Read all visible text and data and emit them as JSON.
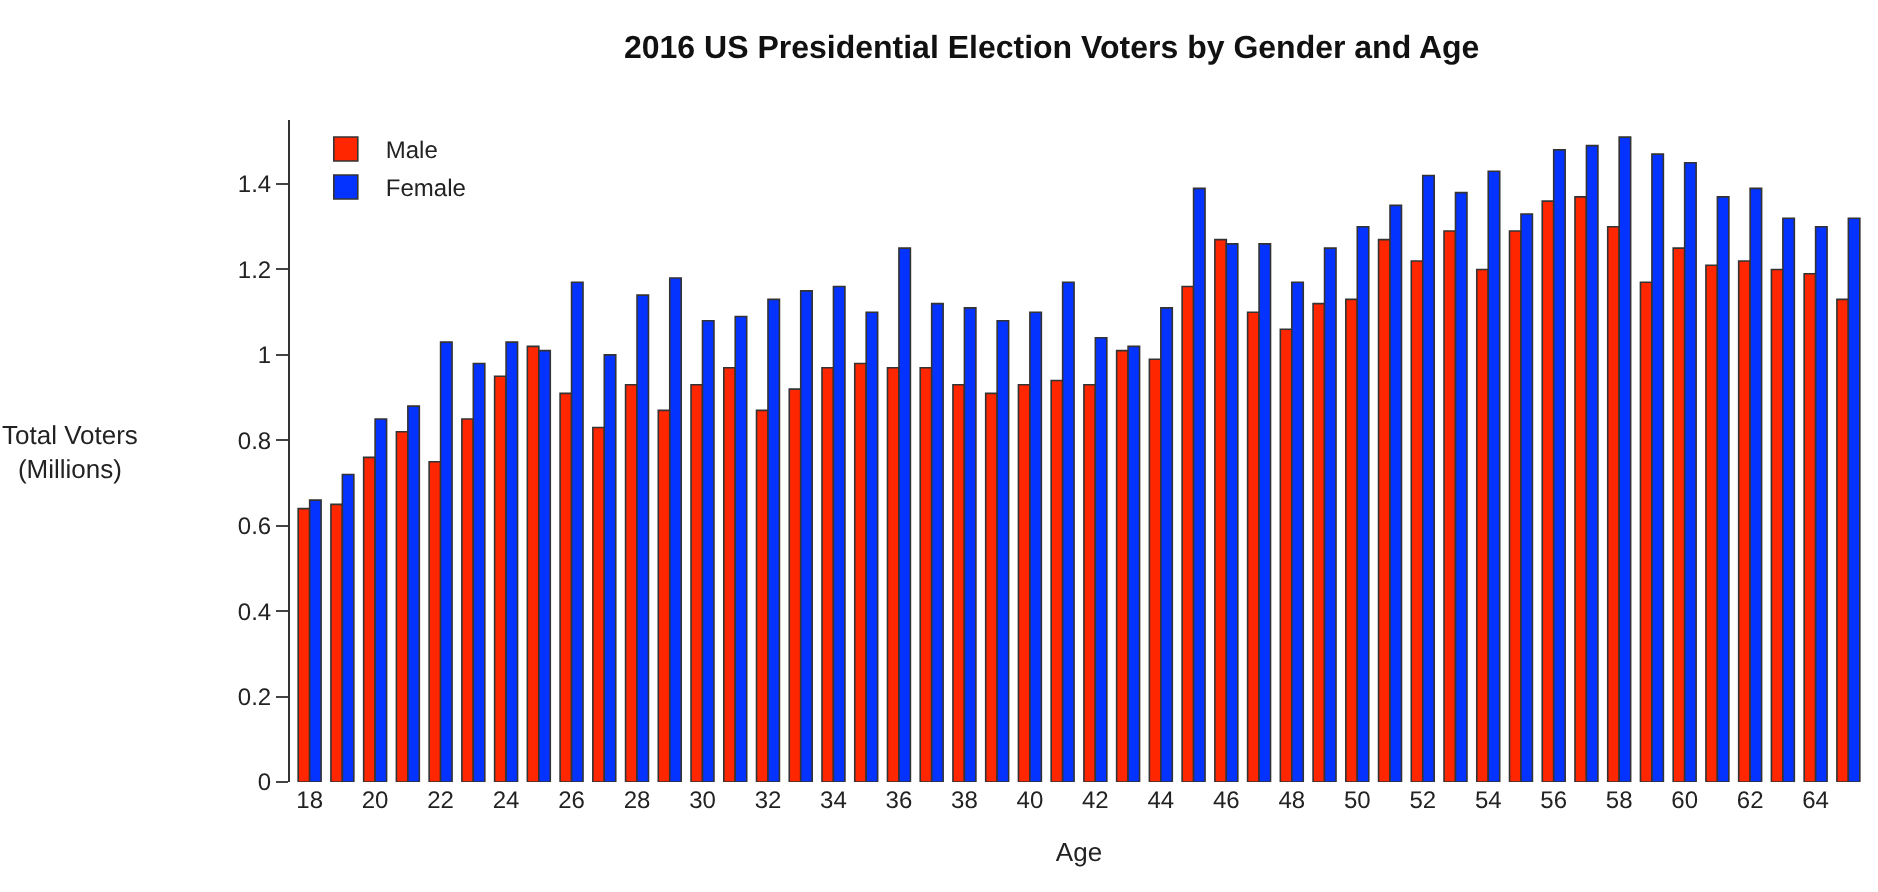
{
  "chart_data": {
    "type": "bar",
    "title": "2016 US Presidential Election Voters by Gender and Age",
    "xlabel": "Age",
    "ylabel": "Total Voters\n(Millions)",
    "categories": [
      "18",
      null,
      "20",
      null,
      "22",
      null,
      "24",
      null,
      "26",
      null,
      "28",
      null,
      "30",
      null,
      "32",
      null,
      "34",
      null,
      "36",
      null,
      "38",
      null,
      "40",
      null,
      "42",
      null,
      "44",
      null,
      "46",
      null,
      "48",
      null,
      "50",
      null,
      "52",
      null,
      "54",
      null,
      "56",
      null,
      "58",
      null,
      "60",
      null,
      "62",
      null,
      "64",
      null
    ],
    "series": [
      {
        "name": "Male",
        "color": "#ff2600",
        "values": [
          0.64,
          0.65,
          0.76,
          0.82,
          0.75,
          0.85,
          0.95,
          1.02,
          0.91,
          0.83,
          0.93,
          0.87,
          0.93,
          0.97,
          0.87,
          0.92,
          0.97,
          0.98,
          0.97,
          0.97,
          0.93,
          0.91,
          0.93,
          0.94,
          0.93,
          1.01,
          0.99,
          1.16,
          1.27,
          1.1,
          1.06,
          1.12,
          1.13,
          1.27,
          1.22,
          1.29,
          1.2,
          1.29,
          1.36,
          1.37,
          1.3,
          1.17,
          1.25,
          1.21,
          1.22,
          1.2,
          1.19,
          1.13
        ]
      },
      {
        "name": "Female",
        "color": "#0433ff",
        "values": [
          0.66,
          0.72,
          0.85,
          0.88,
          1.03,
          0.98,
          1.03,
          1.01,
          1.17,
          1.0,
          1.14,
          1.18,
          1.08,
          1.09,
          1.13,
          1.15,
          1.16,
          1.1,
          1.25,
          1.12,
          1.11,
          1.08,
          1.1,
          1.17,
          1.04,
          1.02,
          1.11,
          1.39,
          1.26,
          1.26,
          1.17,
          1.25,
          1.3,
          1.35,
          1.42,
          1.38,
          1.43,
          1.33,
          1.48,
          1.49,
          1.51,
          1.47,
          1.45,
          1.37,
          1.39,
          1.32,
          1.3,
          1.32
        ]
      }
    ],
    "ylim": [
      0,
      1.55
    ],
    "yticks": [
      0,
      0.2,
      0.4,
      0.6,
      0.8,
      1,
      1.2,
      1.4
    ],
    "legend": "top left"
  }
}
